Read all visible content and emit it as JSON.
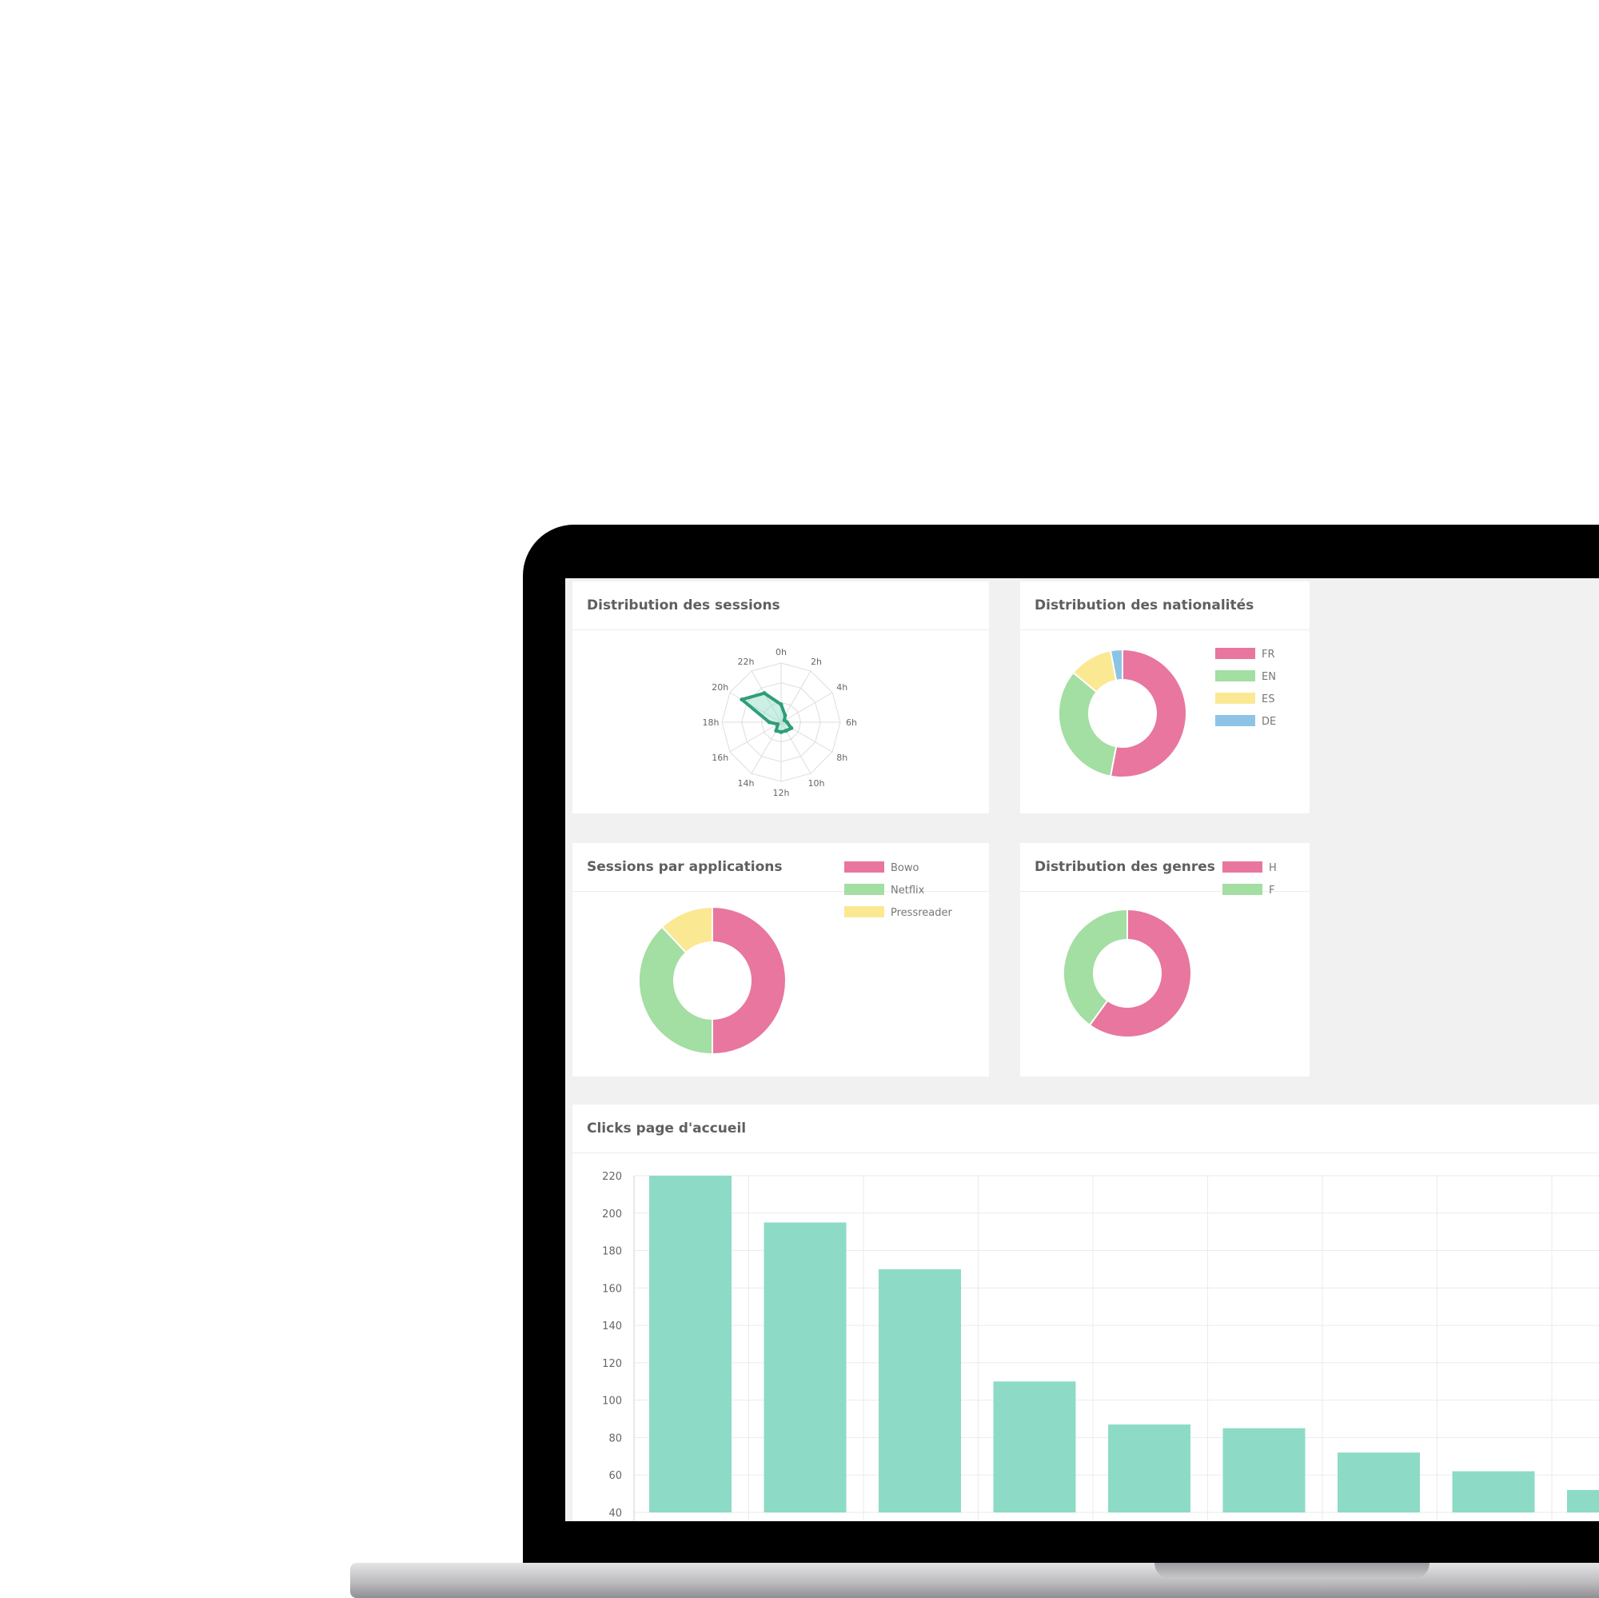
{
  "colors": {
    "pink": "#e8769f",
    "green": "#a3dea2",
    "yellow": "#fbe893",
    "blue": "#8cc4e6",
    "teal": "#8ddbc6",
    "radar_line": "#2e9e78"
  },
  "panels": {
    "sessions_distribution": {
      "title": "Distribution des sessions"
    },
    "nationalities": {
      "title": "Distribution des nationalités"
    },
    "sessions_by_app": {
      "title": "Sessions par applications"
    },
    "genders": {
      "title": "Distribution des genres"
    },
    "home_clicks": {
      "title": "Clicks page d'accueil"
    }
  },
  "chart_data": [
    {
      "id": "sessions",
      "type": "radar",
      "categories": [
        "0h",
        "2h",
        "4h",
        "6h",
        "8h",
        "10h",
        "12h",
        "14h",
        "16h",
        "18h",
        "20h",
        "22h"
      ],
      "values": [
        0.9,
        0.4,
        0.2,
        0.3,
        0.6,
        0.5,
        0.5,
        0.5,
        0.2,
        0.6,
        2.3,
        1.7
      ],
      "rmax": 3
    },
    {
      "id": "nationalities",
      "type": "pie",
      "labels": [
        "FR",
        "EN",
        "ES",
        "DE"
      ],
      "values": [
        53,
        33,
        11,
        3
      ],
      "colors": [
        "#e8769f",
        "#a3dea2",
        "#fbe893",
        "#8cc4e6"
      ]
    },
    {
      "id": "apps",
      "type": "pie",
      "labels": [
        "Bowo",
        "Netflix",
        "Pressreader"
      ],
      "values": [
        50,
        38,
        12
      ],
      "colors": [
        "#e8769f",
        "#a3dea2",
        "#fbe893"
      ]
    },
    {
      "id": "genders",
      "type": "pie",
      "labels": [
        "H",
        "F"
      ],
      "values": [
        60,
        40
      ],
      "colors": [
        "#e8769f",
        "#a3dea2"
      ]
    },
    {
      "id": "clicks",
      "type": "bar",
      "values": [
        220,
        195,
        170,
        110,
        87,
        85,
        72,
        62,
        52
      ],
      "ylim": [
        40,
        220
      ],
      "yticks": [
        40,
        60,
        80,
        100,
        120,
        140,
        160,
        180,
        200,
        220
      ],
      "color": "#8ddbc6"
    }
  ]
}
